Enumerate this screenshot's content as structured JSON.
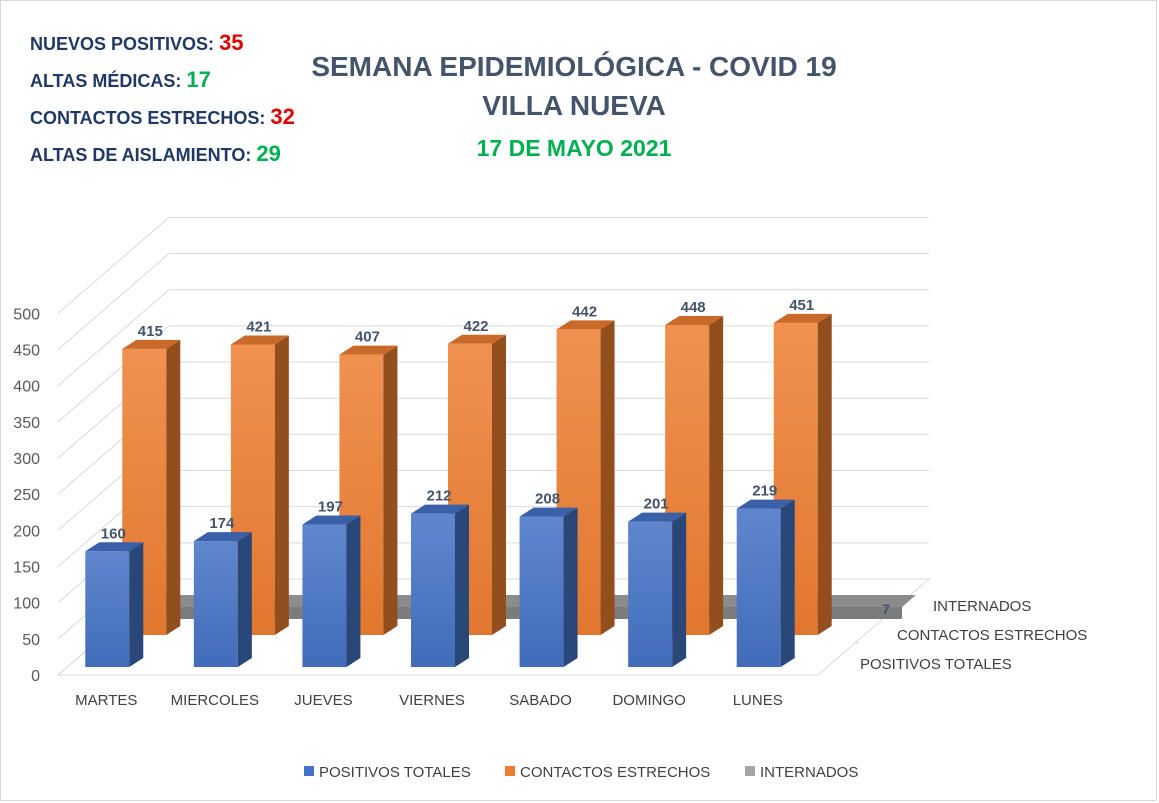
{
  "stats": [
    {
      "label": "NUEVOS POSITIVOS:",
      "value": "35",
      "color": "#e00000"
    },
    {
      "label": "ALTAS MÉDICAS:",
      "value": "17",
      "color": "#00b050"
    },
    {
      "label": "CONTACTOS ESTRECHOS:",
      "value": "32",
      "color": "#e00000"
    },
    {
      "label": "ALTAS DE AISLAMIENTO:",
      "value": "29",
      "color": "#00b050"
    }
  ],
  "colors": {
    "positivos": "#4472c4",
    "contactos": "#ed7d31",
    "internados": "#a5a5a5"
  },
  "chart_data": {
    "type": "bar",
    "title": "SEMANA EPIDEMIOLÓGICA - COVID 19",
    "subtitle": "VILLA NUEVA",
    "date": "17 DE MAYO 2021",
    "categories": [
      "MARTES",
      "MIERCOLES",
      "JUEVES",
      "VIERNES",
      "SABADO",
      "DOMINGO",
      "LUNES"
    ],
    "series": [
      {
        "name": "POSITIVOS TOTALES",
        "values": [
          160,
          174,
          197,
          212,
          208,
          201,
          219
        ]
      },
      {
        "name": "CONTACTOS ESTRECHOS",
        "values": [
          415,
          421,
          407,
          422,
          442,
          448,
          451
        ]
      },
      {
        "name": "INTERNADOS",
        "values": [
          1,
          4,
          4,
          3,
          6,
          7,
          7
        ]
      }
    ],
    "ylim": [
      0,
      500
    ],
    "yticks": [
      0,
      50,
      100,
      150,
      200,
      250,
      300,
      350,
      400,
      450,
      500
    ],
    "depth_labels": [
      "INTERNADOS",
      "CONTACTOS ESTRECHOS",
      "POSITIVOS TOTALES"
    ],
    "legend_position": "bottom",
    "grid": true
  }
}
